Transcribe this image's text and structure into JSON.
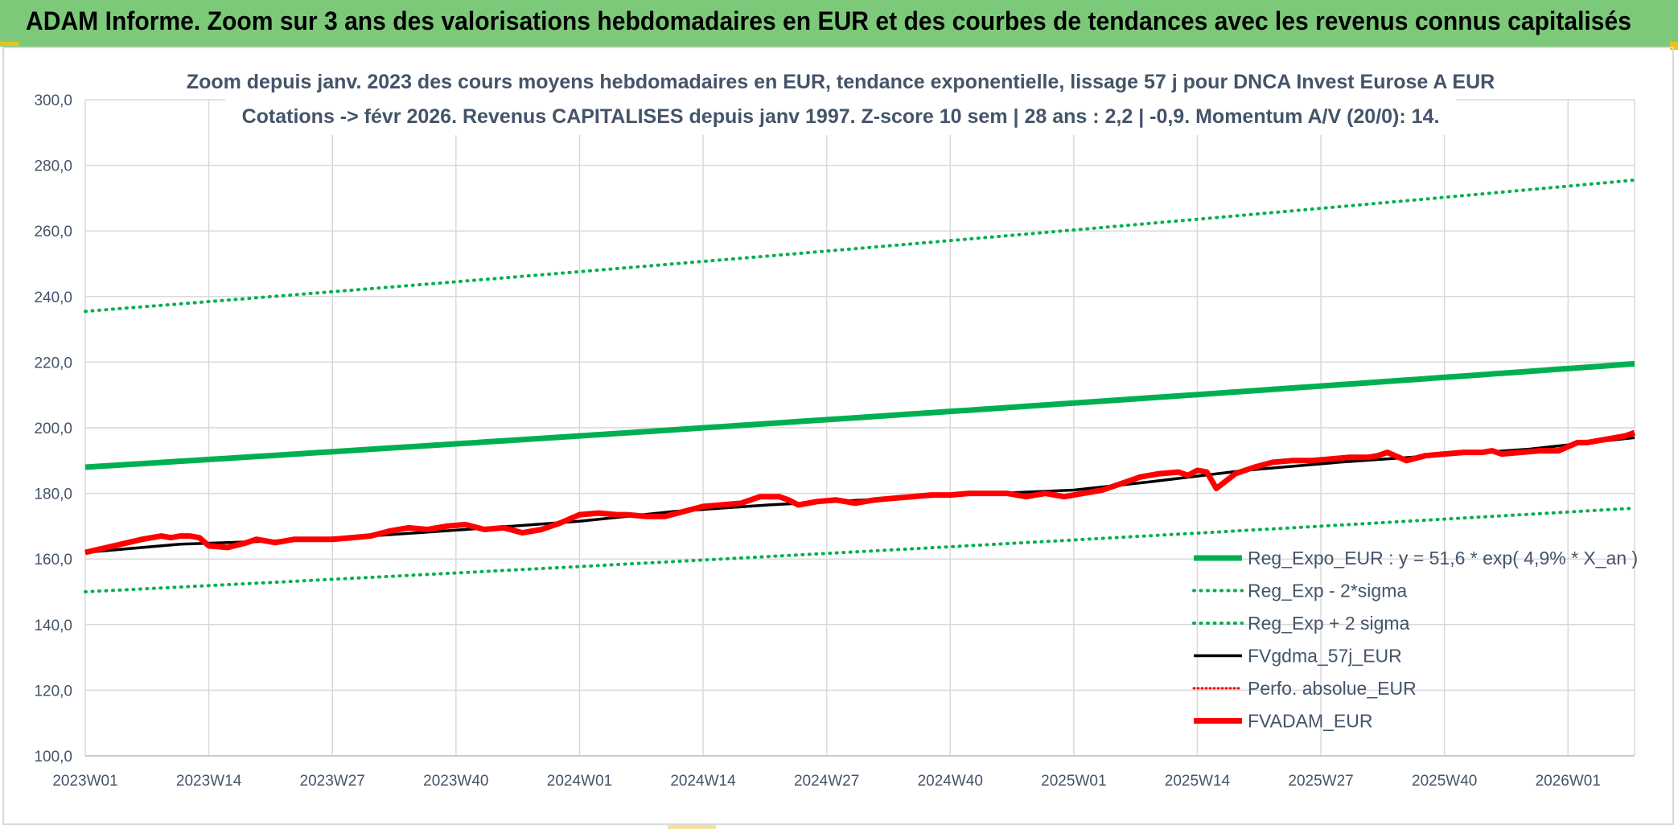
{
  "header": {
    "title": "ADAM Informe. Zoom sur 3 ans des valorisations hebdomadaires en EUR et des courbes de tendances avec les revenus connus capitalisés"
  },
  "colors": {
    "header_bg": "#7dc97a",
    "trend": "#00b050",
    "smooth": "#000000",
    "price": "#ff0000",
    "grid": "#d9d9d9",
    "text": "#44546a"
  },
  "chart_data": {
    "type": "line",
    "title_line1": "Zoom depuis janv. 2023 des cours moyens hebdomadaires en EUR, tendance exponentielle, lissage 57 j pour DNCA Invest Eurose A EUR",
    "title_line2": "Cotations -> févr 2026. Revenus CAPITALISES depuis janv 1997. Z-score 10 sem | 28 ans : 2,2 | -0,9. Momentum A/V (20/0): 14.",
    "xlabel": "",
    "ylabel": "",
    "ylim": [
      100,
      300
    ],
    "yticks": [
      "100,0",
      "120,0",
      "140,0",
      "160,0",
      "180,0",
      "200,0",
      "220,0",
      "240,0",
      "260,0",
      "280,0",
      "300,0"
    ],
    "xlim": [
      0,
      163
    ],
    "xticks": [
      "2023W01",
      "2023W14",
      "2023W27",
      "2023W40",
      "2024W01",
      "2024W14",
      "2024W27",
      "2024W40",
      "2025W01",
      "2025W14",
      "2025W27",
      "2025W40",
      "2026W01"
    ],
    "legend_position": "bottom-right",
    "series": [
      {
        "name": "Reg_Expo_EUR : y = 51,6 * exp( 4,9% *  X_an )",
        "style": "solid-thick",
        "color": "#00b050",
        "start": 188,
        "end": 219.5
      },
      {
        "name": "Reg_Exp - 2*sigma",
        "style": "dotted",
        "color": "#00b050",
        "start": 150,
        "end": 175.5
      },
      {
        "name": "Reg_Exp + 2 sigma",
        "style": "dotted",
        "color": "#00b050",
        "start": 235.5,
        "end": 275.5
      },
      {
        "name": "FVgdma_57j_EUR",
        "style": "solid",
        "color": "#000000",
        "x": [
          0,
          10,
          20,
          30,
          40,
          52,
          62,
          72,
          82,
          92,
          104,
          112,
          122,
          132,
          142,
          152,
          163
        ],
        "values": [
          162,
          164.5,
          165.5,
          167,
          169,
          171.5,
          174.5,
          176.5,
          178,
          179.5,
          181,
          183.5,
          187,
          189.5,
          191.5,
          193.5,
          197
        ]
      },
      {
        "name": "Perfo. absolue_EUR",
        "style": "dotted-thin",
        "color": "#ff0000"
      },
      {
        "name": "FVADAM_EUR",
        "style": "solid-thick",
        "color": "#ff0000",
        "x": [
          0,
          3,
          6,
          8,
          9,
          10,
          11,
          12,
          13,
          15,
          17,
          18,
          20,
          22,
          24,
          26,
          28,
          30,
          32,
          34,
          36,
          38,
          40,
          42,
          44,
          46,
          48,
          50,
          52,
          54,
          56,
          57,
          59,
          61,
          63,
          65,
          67,
          69,
          71,
          73,
          74,
          75,
          77,
          79,
          80,
          81,
          83,
          85,
          87,
          89,
          91,
          93,
          95,
          97,
          99,
          101,
          103,
          105,
          107,
          109,
          111,
          113,
          115,
          116,
          117,
          118,
          119,
          121,
          123,
          125,
          127,
          129,
          131,
          133,
          135,
          136,
          137,
          139,
          141,
          143,
          145,
          147,
          148,
          149,
          151,
          153,
          155,
          157,
          158,
          160,
          162,
          163
        ],
        "values": [
          162,
          164,
          166,
          167,
          166.5,
          167,
          167,
          166.5,
          164,
          163.5,
          165,
          166,
          165,
          166,
          166,
          166,
          166.5,
          167,
          168.5,
          169.5,
          169,
          170,
          170.5,
          169,
          169.5,
          168,
          169,
          171,
          173.5,
          174,
          173.5,
          173.5,
          173,
          173,
          174.5,
          176,
          176.5,
          177,
          179,
          179,
          178,
          176.5,
          177.5,
          178,
          177.5,
          177,
          178,
          178.5,
          179,
          179.5,
          179.5,
          180,
          180,
          180,
          179,
          180,
          179,
          180,
          181,
          183,
          185,
          186,
          186.5,
          185.5,
          187,
          186.5,
          181.5,
          186,
          188,
          189.5,
          190,
          190,
          190.5,
          191,
          191,
          191.5,
          192.5,
          190,
          191.5,
          192,
          192.5,
          192.5,
          193,
          192,
          192.5,
          193,
          193,
          195.5,
          195.5,
          196.5,
          197.5,
          198.5
        ]
      }
    ]
  }
}
